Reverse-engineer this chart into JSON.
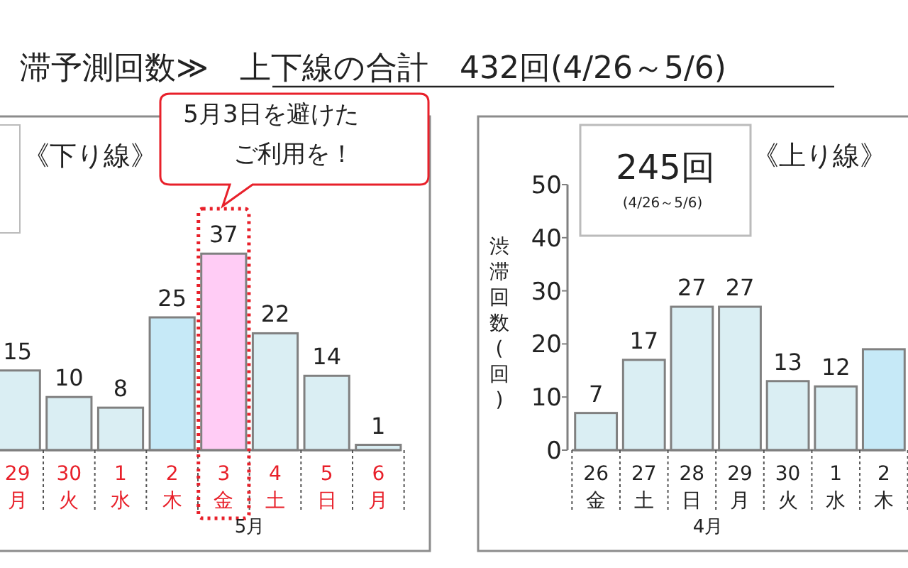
{
  "chart_data": [
    {
      "type": "bar",
      "title": "滞予測回数≫　上下線の合計　432回(4/26～5/6)",
      "subtitle": "《下り線》",
      "categories": [
        "29月",
        "30火",
        "1水",
        "2木",
        "3金",
        "4土",
        "5日",
        "6月"
      ],
      "values": [
        15,
        10,
        8,
        25,
        37,
        22,
        14,
        1
      ],
      "colors": [
        "#daeef3",
        "#daeef3",
        "#daeef3",
        "#c6e9f7",
        "#ffccf5",
        "#daeef3",
        "#daeef3",
        "#daeef3"
      ],
      "ylim": [
        0,
        50
      ],
      "tick_labels": "x",
      "data_labels": true,
      "annotations": [
        "5月3日を避けた",
        "ご利用を！",
        "5月"
      ]
    },
    {
      "type": "bar",
      "title": "《上り線》",
      "ylabel": "渋滞回数(回)",
      "categories": [
        "26金",
        "27土",
        "28日",
        "29月",
        "30火",
        "1水",
        "2木"
      ],
      "values": [
        7,
        17,
        27,
        27,
        13,
        12,
        19
      ],
      "colors": [
        "#daeef3",
        "#daeef3",
        "#daeef3",
        "#daeef3",
        "#daeef3",
        "#daeef3",
        "#c6e9f7"
      ],
      "ylim": [
        0,
        50
      ],
      "yticks": [
        0,
        10,
        20,
        30,
        40,
        50
      ],
      "value_labels": [
        "7",
        "17",
        "27",
        "27",
        "13",
        "12",
        null
      ],
      "annotations": [
        "245回",
        "(4/26～5/6)",
        "4月"
      ]
    }
  ]
}
